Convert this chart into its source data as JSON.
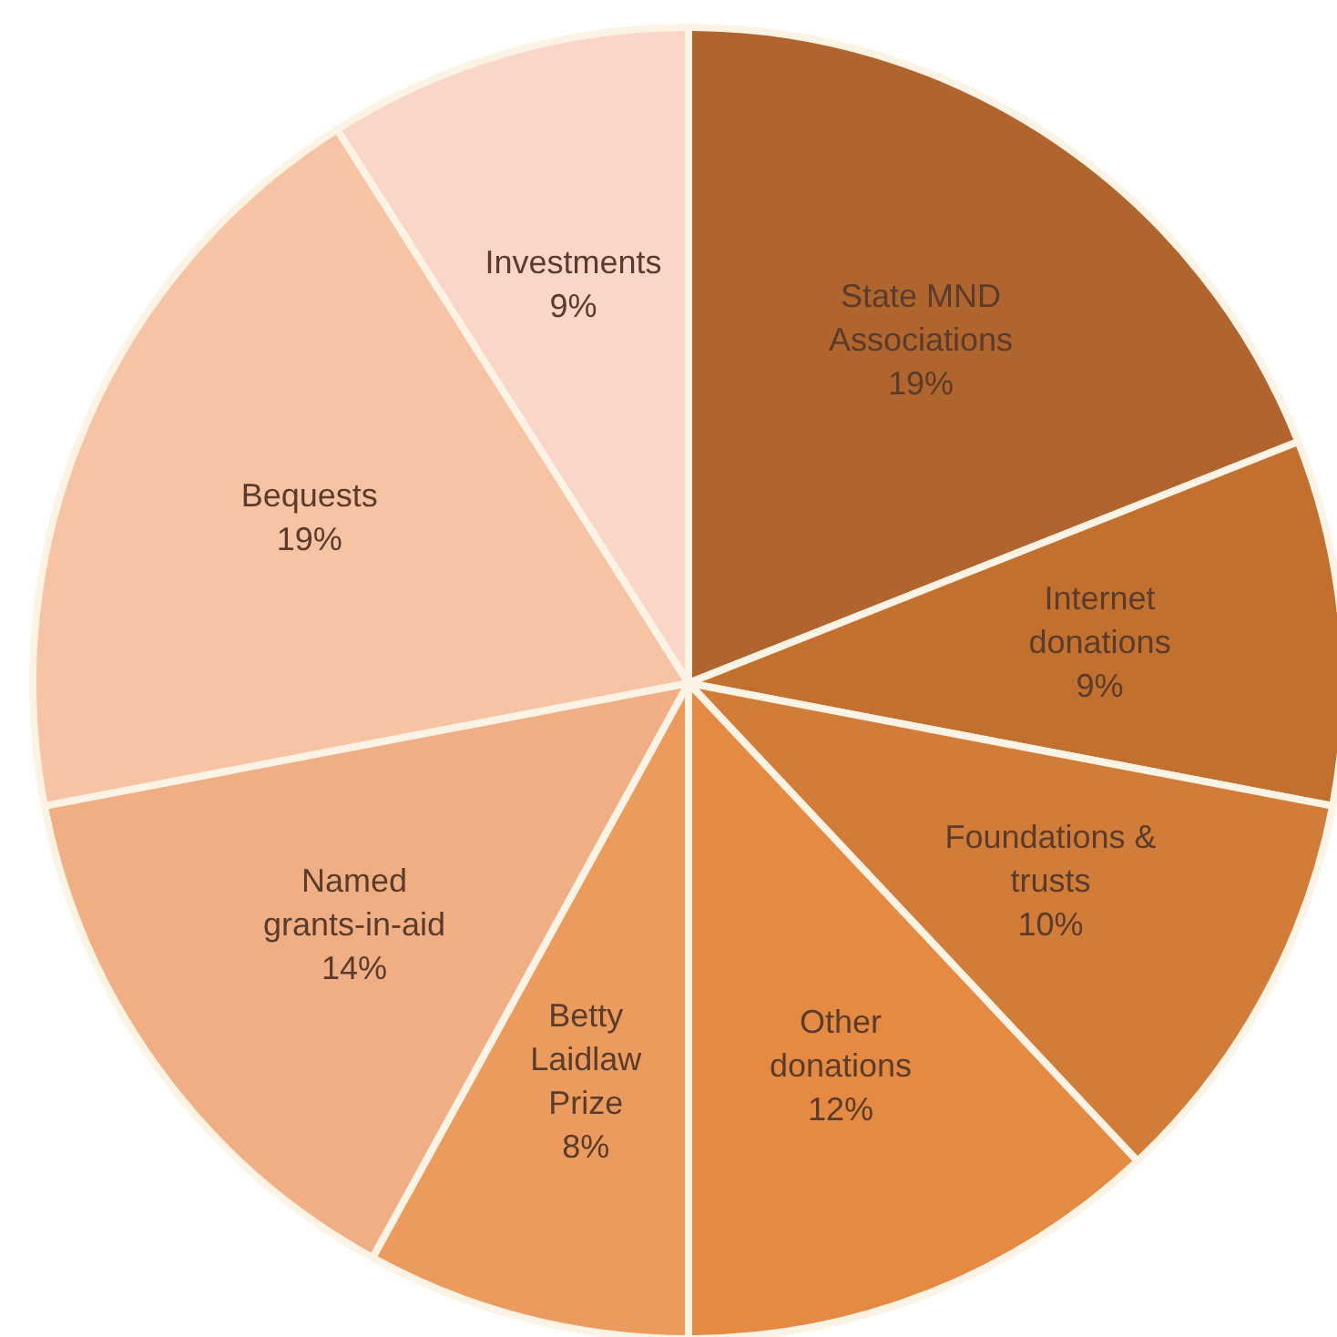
{
  "chart_data": {
    "type": "pie",
    "categories": [
      "State MND\nAssociations",
      "Internet\ndonations",
      "Foundations &\ntrusts",
      "Other\ndonations",
      "Betty\nLaidlaw\nPrize",
      "Named\ngrants-in-aid",
      "Bequests",
      "Investments"
    ],
    "values": [
      19,
      9,
      10,
      12,
      8,
      14,
      19,
      9
    ],
    "value_labels": [
      "19%",
      "9%",
      "10%",
      "12%",
      "8%",
      "14%",
      "19%",
      "9%"
    ],
    "colors": [
      "#b0652e",
      "#c2702f",
      "#d27c3a",
      "#e48a42",
      "#eb9b5e",
      "#f0ae85",
      "#f6c3a5",
      "#f9d6c8"
    ]
  }
}
